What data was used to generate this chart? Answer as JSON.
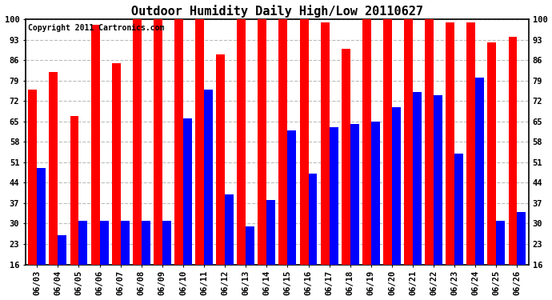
{
  "title": "Outdoor Humidity Daily High/Low 20110627",
  "copyright": "Copyright 2011 Cartronics.com",
  "dates": [
    "06/03",
    "06/04",
    "06/05",
    "06/06",
    "06/07",
    "06/08",
    "06/09",
    "06/10",
    "06/11",
    "06/12",
    "06/13",
    "06/14",
    "06/15",
    "06/16",
    "06/17",
    "06/18",
    "06/19",
    "06/20",
    "06/21",
    "06/22",
    "06/23",
    "06/24",
    "06/25",
    "06/26"
  ],
  "highs": [
    76,
    82,
    67,
    98,
    85,
    100,
    100,
    100,
    100,
    88,
    100,
    100,
    100,
    100,
    99,
    90,
    100,
    100,
    100,
    100,
    99,
    99,
    92,
    94
  ],
  "lows": [
    49,
    26,
    31,
    31,
    31,
    31,
    31,
    66,
    76,
    40,
    29,
    38,
    62,
    47,
    63,
    64,
    65,
    70,
    75,
    74,
    54,
    80,
    31,
    34
  ],
  "high_color": "#ff0000",
  "low_color": "#0000ff",
  "bg_color": "#ffffff",
  "grid_color": "#bbbbbb",
  "bar_width": 0.42,
  "ymin": 16,
  "ymax": 100,
  "yticks": [
    16,
    23,
    30,
    37,
    44,
    51,
    58,
    65,
    72,
    79,
    86,
    93,
    100
  ],
  "title_fontsize": 11,
  "tick_fontsize": 7.5,
  "copyright_fontsize": 7
}
